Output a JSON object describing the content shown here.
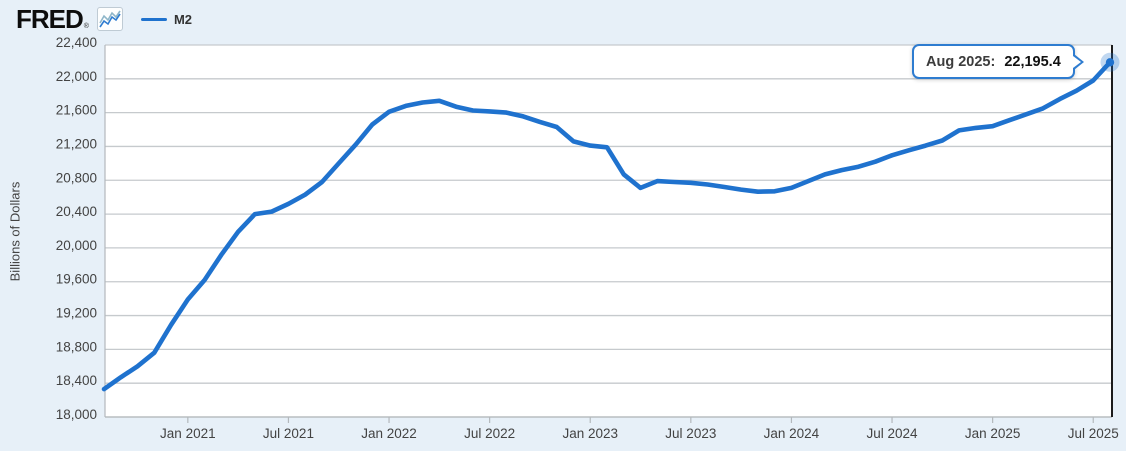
{
  "header": {
    "logo_text": "FRED",
    "registered_mark": "®",
    "sparkline_icon": "fred-mini-graph"
  },
  "legend": {
    "items": [
      {
        "label": "M2",
        "color": "#1f72ce"
      }
    ]
  },
  "tooltip": {
    "label": "Aug 2025:",
    "value": "22,195.4"
  },
  "colors": {
    "page_background": "#e7f0f8",
    "plot_background": "#ffffff",
    "gridline": "#c6cacd",
    "axis_spine": "#b3b8bc",
    "axis_text": "#434343",
    "series_line": "#1f72ce",
    "crosshair": "#1c1c1c",
    "tooltip_border": "#2e7cd0",
    "halo": "rgba(31,114,206,0.28)"
  },
  "chart_data": {
    "type": "line",
    "title": "",
    "xlabel": "",
    "ylabel": "Billions of Dollars",
    "ylim": [
      18000,
      22400
    ],
    "y_tick_step": 400,
    "grid": true,
    "legend_position": "top-left",
    "x": [
      "2020-08",
      "2020-09",
      "2020-10",
      "2020-11",
      "2020-12",
      "2021-01",
      "2021-02",
      "2021-03",
      "2021-04",
      "2021-05",
      "2021-06",
      "2021-07",
      "2021-08",
      "2021-09",
      "2021-10",
      "2021-11",
      "2021-12",
      "2022-01",
      "2022-02",
      "2022-03",
      "2022-04",
      "2022-05",
      "2022-06",
      "2022-07",
      "2022-08",
      "2022-09",
      "2022-10",
      "2022-11",
      "2022-12",
      "2023-01",
      "2023-02",
      "2023-03",
      "2023-04",
      "2023-05",
      "2023-06",
      "2023-07",
      "2023-08",
      "2023-09",
      "2023-10",
      "2023-11",
      "2023-12",
      "2024-01",
      "2024-02",
      "2024-03",
      "2024-04",
      "2024-05",
      "2024-06",
      "2024-07",
      "2024-08",
      "2024-09",
      "2024-10",
      "2024-11",
      "2024-12",
      "2025-01",
      "2025-02",
      "2025-03",
      "2025-04",
      "2025-05",
      "2025-06",
      "2025-07",
      "2025-08"
    ],
    "series": [
      {
        "name": "M2",
        "color": "#1f72ce",
        "values": [
          18330,
          18470,
          18600,
          18760,
          19090,
          19390,
          19620,
          19920,
          20190,
          20400,
          20430,
          20520,
          20630,
          20780,
          21000,
          21220,
          21460,
          21610,
          21680,
          21720,
          21740,
          21670,
          21625,
          21615,
          21600,
          21555,
          21490,
          21430,
          21260,
          21210,
          21190,
          20870,
          20710,
          20790,
          20780,
          20770,
          20750,
          20720,
          20690,
          20665,
          20670,
          20710,
          20790,
          20870,
          20920,
          20960,
          21020,
          21095,
          21155,
          21210,
          21270,
          21390,
          21420,
          21440,
          21510,
          21580,
          21650,
          21760,
          21860,
          21980,
          22195.4
        ]
      }
    ],
    "x_ticks": [
      {
        "label": "Jan 2021",
        "index": 5
      },
      {
        "label": "Jul 2021",
        "index": 11
      },
      {
        "label": "Jan 2022",
        "index": 17
      },
      {
        "label": "Jul 2022",
        "index": 23
      },
      {
        "label": "Jan 2023",
        "index": 29
      },
      {
        "label": "Jul 2023",
        "index": 35
      },
      {
        "label": "Jan 2024",
        "index": 41
      },
      {
        "label": "Jul 2024",
        "index": 47
      },
      {
        "label": "Jan 2025",
        "index": 53
      },
      {
        "label": "Jul 2025",
        "index": 59
      }
    ],
    "highlight": {
      "x_label": "Aug 2025",
      "index": 60,
      "value": 22195.4
    }
  }
}
